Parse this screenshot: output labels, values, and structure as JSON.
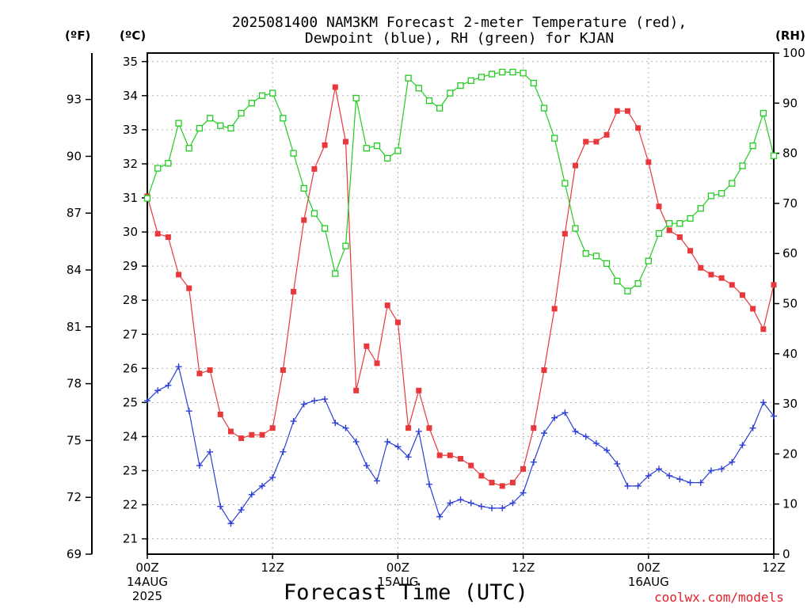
{
  "title_line1": "2025081400 NAM3KM Forecast 2-meter Temperature (red),",
  "title_line2": "Dewpoint (blue), RH (green) for KJAN",
  "units": {
    "fahrenheit": "(ºF)",
    "celsius": "(ºC)",
    "rh": "(RH)"
  },
  "xlabel": "Forecast Time (UTC)",
  "credit": "coolwx.com/models",
  "colors": {
    "temperature": "#e8383c",
    "dewpoint": "#2c3fd6",
    "rh": "#22cc22",
    "grid": "#b0b0b0",
    "axis": "#000000"
  },
  "chart_data": {
    "type": "line",
    "title": "2025081400 NAM3KM Forecast 2-meter Temperature (red), Dewpoint (blue), RH (green) for KJAN",
    "xlabel": "Forecast Time (UTC)",
    "x_unit": "forecast hour from 2025-08-14 00Z",
    "x": [
      0,
      1,
      2,
      3,
      4,
      5,
      6,
      7,
      8,
      9,
      10,
      11,
      12,
      13,
      14,
      15,
      16,
      17,
      18,
      19,
      20,
      21,
      22,
      23,
      24,
      25,
      26,
      27,
      28,
      29,
      30,
      31,
      32,
      33,
      34,
      35,
      36,
      37,
      38,
      39,
      40,
      41,
      42,
      43,
      44,
      45,
      46,
      47,
      48,
      49,
      50,
      51,
      52,
      53,
      54,
      55,
      56,
      57,
      58,
      59,
      60
    ],
    "xlim": [
      0,
      60
    ],
    "x_ticks": [
      {
        "hour": 0,
        "label": "00Z",
        "date": "14AUG",
        "year": "2025"
      },
      {
        "hour": 12,
        "label": "12Z",
        "date": "",
        "year": ""
      },
      {
        "hour": 24,
        "label": "00Z",
        "date": "15AUG",
        "year": ""
      },
      {
        "hour": 36,
        "label": "12Z",
        "date": "",
        "year": ""
      },
      {
        "hour": 48,
        "label": "00Z",
        "date": "16AUG",
        "year": ""
      },
      {
        "hour": 60,
        "label": "12Z",
        "date": "",
        "year": ""
      }
    ],
    "y_left_c": {
      "label": "(ºC)",
      "lim": [
        20.55,
        35.25
      ],
      "ticks": [
        21,
        22,
        23,
        24,
        25,
        26,
        27,
        28,
        29,
        30,
        31,
        32,
        33,
        34,
        35
      ]
    },
    "y_left_f": {
      "label": "(ºF)",
      "lim": [
        69,
        95.45
      ],
      "ticks": [
        69,
        72,
        75,
        78,
        81,
        84,
        87,
        90,
        93
      ]
    },
    "y_right": {
      "label": "(RH)",
      "lim": [
        0,
        100
      ],
      "ticks": [
        0,
        10,
        20,
        30,
        40,
        50,
        60,
        70,
        80,
        90,
        100
      ]
    },
    "grid": true,
    "series": [
      {
        "key": "temperature",
        "axis": "c",
        "marker": "filled-square",
        "values": [
          31.05,
          29.95,
          29.85,
          28.75,
          28.35,
          25.85,
          25.95,
          24.65,
          24.15,
          23.95,
          24.05,
          24.05,
          24.25,
          25.95,
          28.25,
          30.35,
          31.85,
          32.55,
          34.25,
          32.65,
          25.35,
          26.65,
          26.15,
          27.85,
          27.35,
          24.25,
          25.35,
          24.25,
          23.45,
          23.45,
          23.35,
          23.15,
          22.85,
          22.65,
          22.55,
          22.65,
          23.05,
          24.25,
          25.95,
          27.75,
          29.95,
          31.95,
          32.65,
          32.65,
          32.85,
          33.55,
          33.55,
          33.05,
          32.05,
          30.75,
          30.05,
          29.85,
          29.45,
          28.95,
          28.75,
          28.65,
          28.45,
          28.15,
          27.75,
          27.15,
          28.45
        ]
      },
      {
        "key": "dewpoint",
        "axis": "c",
        "marker": "plus",
        "values": [
          25.05,
          25.35,
          25.5,
          26.05,
          24.75,
          23.15,
          23.55,
          21.95,
          21.45,
          21.85,
          22.3,
          22.55,
          22.8,
          23.55,
          24.45,
          24.95,
          25.05,
          25.1,
          24.4,
          24.25,
          23.85,
          23.15,
          22.7,
          23.85,
          23.7,
          23.4,
          24.15,
          22.6,
          21.65,
          22.05,
          22.15,
          22.05,
          21.95,
          21.9,
          21.9,
          22.05,
          22.35,
          23.25,
          24.1,
          24.55,
          24.7,
          24.15,
          24.0,
          23.8,
          23.6,
          23.2,
          22.55,
          22.55,
          22.85,
          23.05,
          22.85,
          22.75,
          22.65,
          22.65,
          23.0,
          23.05,
          23.25,
          23.75,
          24.25,
          25.0,
          24.6
        ]
      },
      {
        "key": "rh",
        "axis": "rh",
        "marker": "open-square",
        "values": [
          71,
          77,
          78,
          86,
          81,
          85,
          87,
          85.5,
          85,
          88,
          90,
          91.5,
          92,
          87,
          80,
          73,
          68,
          65,
          56,
          61.5,
          91,
          81,
          81.5,
          79,
          80.5,
          95,
          93,
          90.5,
          89,
          92,
          93.5,
          94.5,
          95.2,
          95.8,
          96.2,
          96.2,
          96,
          94,
          89,
          83,
          74,
          65,
          60,
          59.5,
          58,
          54.5,
          52.5,
          54,
          58.5,
          64,
          66,
          66,
          67,
          69,
          71.5,
          72,
          74,
          77.5,
          81.5,
          88,
          79.5
        ]
      }
    ]
  }
}
